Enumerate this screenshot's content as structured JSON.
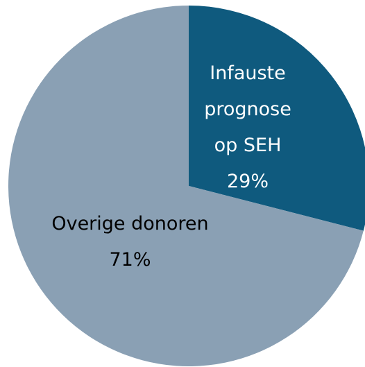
{
  "chart_data": {
    "type": "pie",
    "categories": [
      "Infauste prognose op SEH",
      "Overige donoren"
    ],
    "values": [
      29,
      71
    ],
    "value_labels": [
      "29%",
      "71%"
    ],
    "colors": [
      "#0f5a7e",
      "#8aa0b4"
    ],
    "label_colors": [
      "#ffffff",
      "#000000"
    ]
  }
}
